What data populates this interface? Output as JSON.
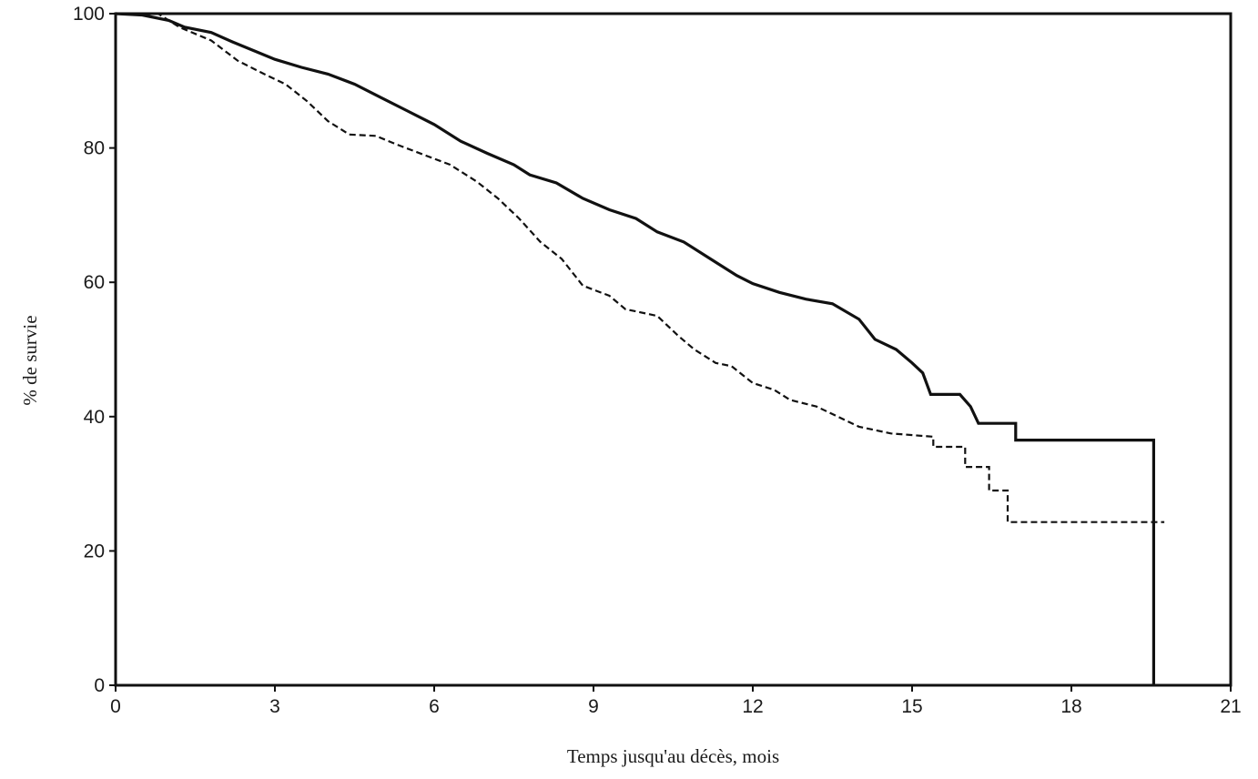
{
  "chart_data": {
    "type": "line",
    "title": "",
    "xlabel": "Temps jusqu'au décès, mois",
    "ylabel": "% de survie",
    "xlim": [
      0,
      21
    ],
    "ylim": [
      0,
      100
    ],
    "x_ticks": [
      0,
      3,
      6,
      9,
      12,
      15,
      18,
      21
    ],
    "y_ticks": [
      0,
      20,
      40,
      60,
      80,
      100
    ],
    "x_tick_labels": [
      "0",
      "3",
      "6",
      "9",
      "12",
      "15",
      "18",
      "21"
    ],
    "y_tick_labels": [
      "0",
      "20",
      "40",
      "60",
      "80",
      "100"
    ],
    "grid": false,
    "legend": "none",
    "series": [
      {
        "style": "solid",
        "color": "#111111",
        "points": [
          [
            0,
            100
          ],
          [
            0.5,
            99.8
          ],
          [
            1.0,
            99.0
          ],
          [
            1.3,
            98.0
          ],
          [
            1.8,
            97.2
          ],
          [
            2.2,
            95.8
          ],
          [
            2.6,
            94.5
          ],
          [
            3.0,
            93.2
          ],
          [
            3.5,
            92.0
          ],
          [
            4.0,
            91.0
          ],
          [
            4.5,
            89.5
          ],
          [
            5.0,
            87.5
          ],
          [
            5.5,
            85.5
          ],
          [
            6.0,
            83.5
          ],
          [
            6.5,
            81.0
          ],
          [
            7.0,
            79.2
          ],
          [
            7.5,
            77.5
          ],
          [
            7.8,
            76.0
          ],
          [
            8.3,
            74.8
          ],
          [
            8.8,
            72.5
          ],
          [
            9.3,
            70.8
          ],
          [
            9.8,
            69.5
          ],
          [
            10.2,
            67.5
          ],
          [
            10.7,
            66.0
          ],
          [
            11.2,
            63.5
          ],
          [
            11.7,
            61.0
          ],
          [
            12.0,
            59.8
          ],
          [
            12.5,
            58.5
          ],
          [
            13.0,
            57.5
          ],
          [
            13.5,
            56.8
          ],
          [
            14.0,
            54.5
          ],
          [
            14.3,
            51.5
          ],
          [
            14.7,
            50.0
          ],
          [
            15.0,
            48.0
          ],
          [
            15.2,
            46.5
          ],
          [
            15.35,
            43.3
          ],
          [
            15.9,
            43.3
          ],
          [
            16.1,
            41.5
          ],
          [
            16.25,
            39.0
          ],
          [
            16.95,
            39.0
          ],
          [
            16.95,
            36.5
          ],
          [
            19.55,
            36.5
          ],
          [
            19.55,
            0
          ]
        ]
      },
      {
        "style": "dashed",
        "color": "#111111",
        "points": [
          [
            0,
            100
          ],
          [
            0.8,
            100
          ],
          [
            1.2,
            98.0
          ],
          [
            1.8,
            96.0
          ],
          [
            2.3,
            93.0
          ],
          [
            2.8,
            91.0
          ],
          [
            3.2,
            89.5
          ],
          [
            3.6,
            87.0
          ],
          [
            4.0,
            84.0
          ],
          [
            4.4,
            82.0
          ],
          [
            4.9,
            81.8
          ],
          [
            5.3,
            80.5
          ],
          [
            5.8,
            79.0
          ],
          [
            6.3,
            77.5
          ],
          [
            6.8,
            75.0
          ],
          [
            7.2,
            72.5
          ],
          [
            7.6,
            69.5
          ],
          [
            8.0,
            66.0
          ],
          [
            8.4,
            63.5
          ],
          [
            8.8,
            59.5
          ],
          [
            9.3,
            58.0
          ],
          [
            9.6,
            56.0
          ],
          [
            10.2,
            55.0
          ],
          [
            10.6,
            52.0
          ],
          [
            10.9,
            50.0
          ],
          [
            11.3,
            48.0
          ],
          [
            11.6,
            47.5
          ],
          [
            12.0,
            45.0
          ],
          [
            12.4,
            44.0
          ],
          [
            12.7,
            42.5
          ],
          [
            13.2,
            41.5
          ],
          [
            13.6,
            40.0
          ],
          [
            14.0,
            38.5
          ],
          [
            14.6,
            37.5
          ],
          [
            15.4,
            37.0
          ],
          [
            15.4,
            35.5
          ],
          [
            16.0,
            35.5
          ],
          [
            16.0,
            32.5
          ],
          [
            16.45,
            32.5
          ],
          [
            16.45,
            29.0
          ],
          [
            16.8,
            29.0
          ],
          [
            16.8,
            24.3
          ],
          [
            19.75,
            24.3
          ]
        ]
      }
    ]
  }
}
